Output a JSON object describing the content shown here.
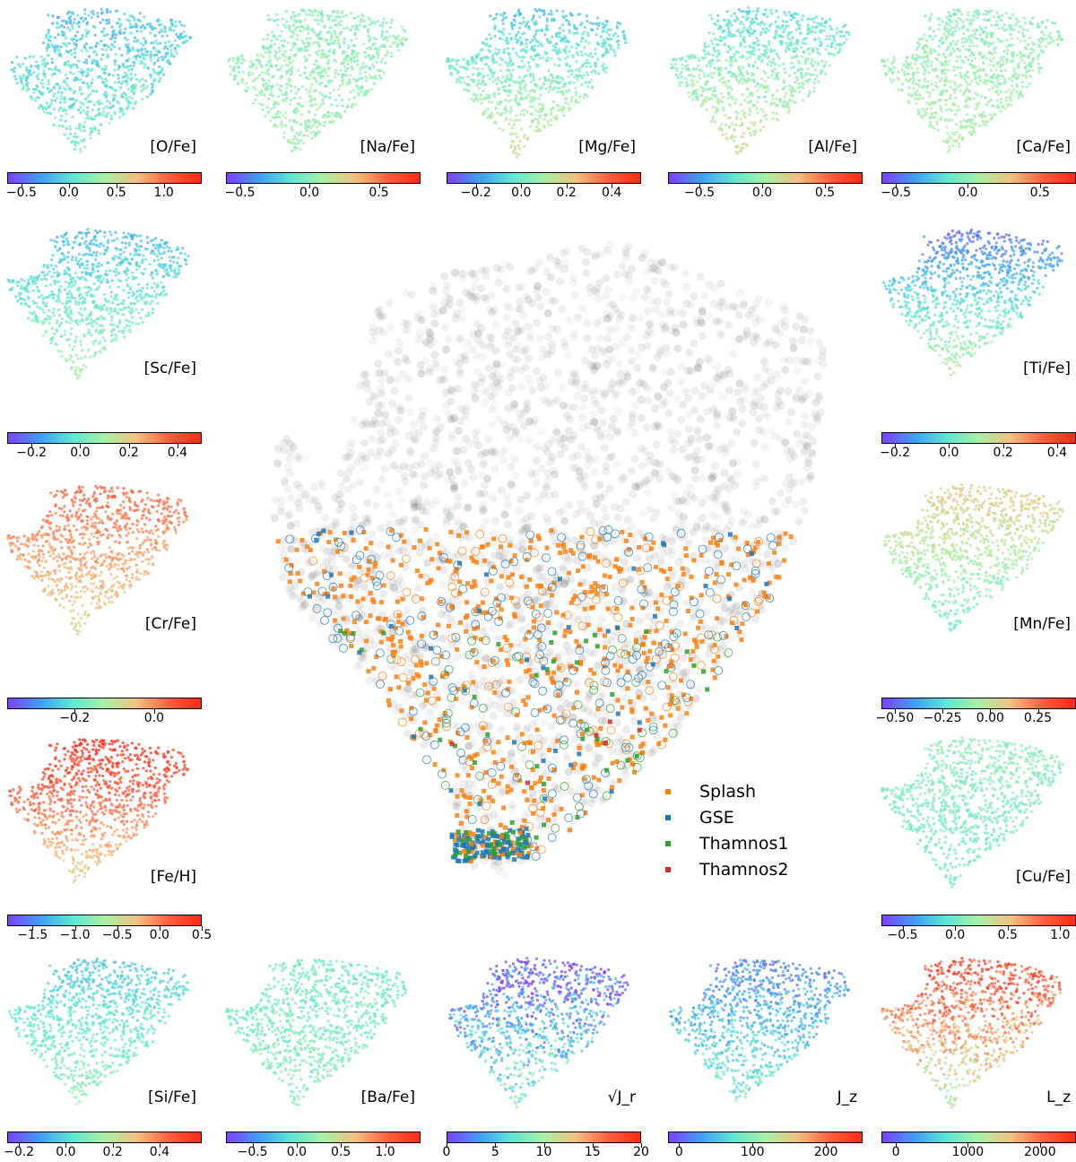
{
  "colormap": [
    "#7f3fff",
    "#3f9ff5",
    "#5ee7d2",
    "#a9f0a4",
    "#f2c080",
    "#ff6040",
    "#ff2a14"
  ],
  "colors": {
    "splash": "#ff7f0e",
    "gse": "#1f77b4",
    "thamnos1": "#2ca02c",
    "thamnos2": "#d62728",
    "background": "#555555"
  },
  "chart_data": [
    {
      "type": "scatter",
      "quantity": "[O/Fe]",
      "colorbar_ticks": [
        "−0.5",
        "0.0",
        "0.5",
        "1.0"
      ],
      "colorbar_range": [
        -0.65,
        1.4
      ]
    },
    {
      "type": "scatter",
      "quantity": "[Na/Fe]",
      "colorbar_ticks": [
        "−0.5",
        "0.0",
        "0.5"
      ],
      "colorbar_range": [
        -0.6,
        0.8
      ]
    },
    {
      "type": "scatter",
      "quantity": "[Mg/Fe]",
      "colorbar_ticks": [
        "−0.2",
        "0.0",
        "0.2",
        "0.4"
      ],
      "colorbar_range": [
        -0.33,
        0.53
      ]
    },
    {
      "type": "scatter",
      "quantity": "[Al/Fe]",
      "colorbar_ticks": [
        "−0.5",
        "0.0",
        "0.5"
      ],
      "colorbar_range": [
        -0.75,
        0.8
      ]
    },
    {
      "type": "scatter",
      "quantity": "[Ca/Fe]",
      "colorbar_ticks": [
        "−0.5",
        "0.0",
        "0.5"
      ],
      "colorbar_range": [
        -0.6,
        0.75
      ]
    },
    {
      "type": "scatter",
      "quantity": "[Sc/Fe]",
      "colorbar_ticks": [
        "−0.2",
        "0.0",
        "0.2",
        "0.4"
      ],
      "colorbar_range": [
        -0.3,
        0.5
      ]
    },
    {
      "type": "scatter",
      "quantity": "[Ti/Fe]",
      "colorbar_ticks": [
        "−0.2",
        "0.0",
        "0.2",
        "0.4"
      ],
      "colorbar_range": [
        -0.25,
        0.47
      ]
    },
    {
      "type": "scatter",
      "quantity": "[Cr/Fe]",
      "colorbar_ticks": [
        "−0.2",
        "0.0"
      ],
      "colorbar_range": [
        -0.37,
        0.12
      ]
    },
    {
      "type": "scatter",
      "quantity": "[Mn/Fe]",
      "colorbar_ticks": [
        "−0.50",
        "−0.25",
        "0.00",
        "0.25"
      ],
      "colorbar_range": [
        -0.57,
        0.45
      ]
    },
    {
      "type": "scatter",
      "quantity": "[Fe/H]",
      "colorbar_ticks": [
        "−1.5",
        "−1.0",
        "−0.5",
        "0.0",
        "0.5"
      ],
      "colorbar_range": [
        -1.8,
        0.5
      ]
    },
    {
      "type": "scatter",
      "quantity": "[Cu/Fe]",
      "colorbar_ticks": [
        "−0.5",
        "0.0",
        "0.5",
        "1.0"
      ],
      "colorbar_range": [
        -0.7,
        1.15
      ]
    },
    {
      "type": "scatter",
      "quantity": "[Si/Fe]",
      "colorbar_ticks": [
        "−0.2",
        "0.0",
        "0.2",
        "0.4"
      ],
      "colorbar_range": [
        -0.25,
        0.58
      ]
    },
    {
      "type": "scatter",
      "quantity": "[Ba/Fe]",
      "colorbar_ticks": [
        "−0.5",
        "0.0",
        "0.5",
        "1.0"
      ],
      "colorbar_range": [
        -0.8,
        1.4
      ]
    },
    {
      "type": "scatter",
      "quantity": "√J_r",
      "colorbar_ticks": [
        "0",
        "5",
        "10",
        "15",
        "20"
      ],
      "colorbar_range": [
        0,
        20
      ]
    },
    {
      "type": "scatter",
      "quantity": "J_z",
      "colorbar_ticks": [
        "0",
        "100",
        "200"
      ],
      "colorbar_range": [
        -15,
        250
      ]
    },
    {
      "type": "scatter",
      "quantity": "L_z",
      "colorbar_ticks": [
        "0",
        "1000",
        "2000"
      ],
      "colorbar_range": [
        -200,
        2500
      ]
    },
    {
      "type": "scatter",
      "legend_position": "lower-right",
      "series": [
        {
          "name": "Splash"
        },
        {
          "name": "GSE"
        },
        {
          "name": "Thamnos1"
        },
        {
          "name": "Thamnos2"
        }
      ]
    }
  ]
}
